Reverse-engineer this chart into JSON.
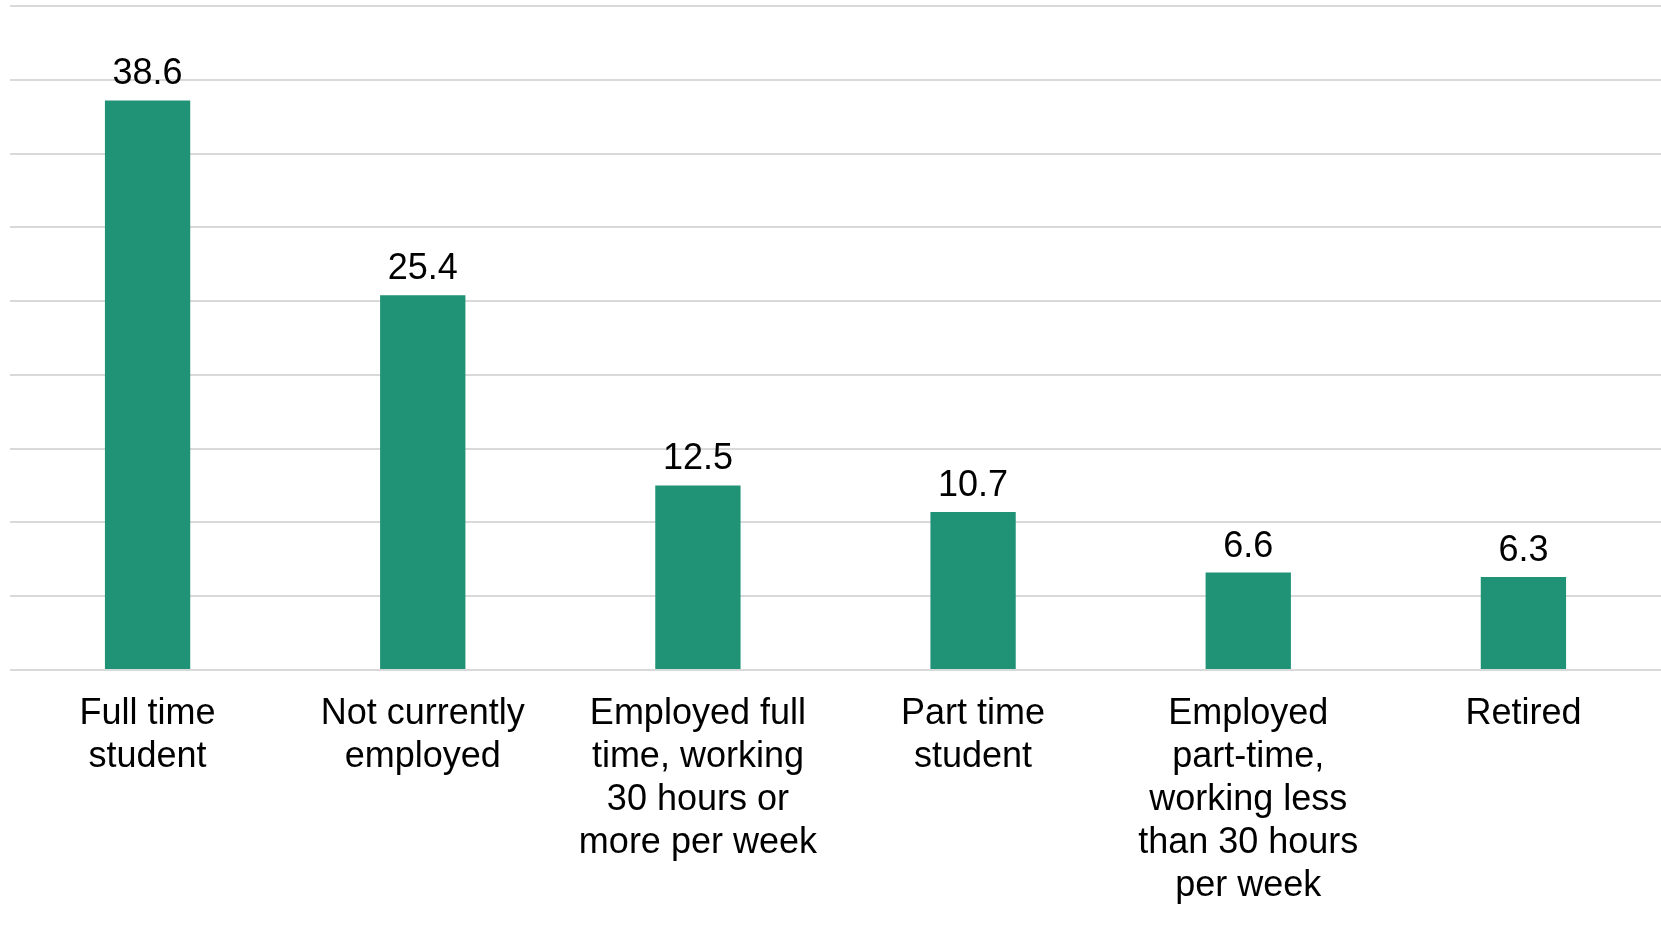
{
  "chart_data": {
    "type": "bar",
    "categories": [
      "Full time student",
      "Not currently employed",
      "Employed full time, working 30 hours or more per week",
      "Part time student",
      "Employed part-time, working less than 30 hours per week",
      "Retired"
    ],
    "values": [
      38.6,
      25.4,
      12.5,
      10.7,
      6.6,
      6.3
    ],
    "color": "#209276",
    "ylim": [
      0,
      45
    ],
    "yticks": [
      {
        "value": 0,
        "label": null
      },
      {
        "value": 5,
        "label": null
      },
      {
        "value": 10,
        "label": null
      },
      {
        "value": 15,
        "label": null
      },
      {
        "value": 20,
        "label": null
      },
      {
        "value": 25,
        "label": null
      },
      {
        "value": 30,
        "label": null
      },
      {
        "value": 35,
        "label": null
      },
      {
        "value": 40,
        "label": null
      },
      {
        "value": 45,
        "label": null
      }
    ],
    "grid": "y",
    "tick_labels": "x",
    "data_labels": true
  }
}
